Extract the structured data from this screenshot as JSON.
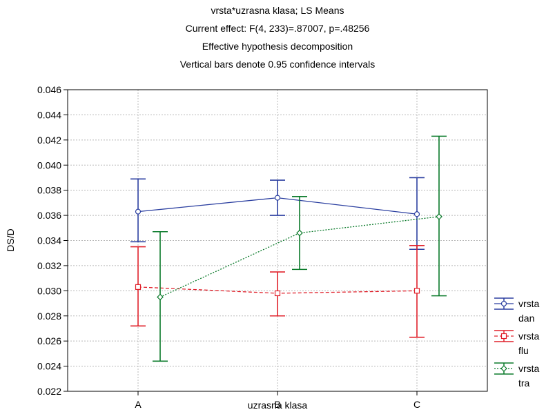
{
  "titles": [
    "vrsta*uzrasna klasa; LS Means",
    "Current effect: F(4, 233)=.87007, p=.48256",
    "Effective hypothesis decomposition",
    "Vertical bars denote 0.95 confidence intervals"
  ],
  "chart_data": {
    "type": "line",
    "title": "vrsta*uzrasna klasa; LS Means",
    "xlabel": "uzrasna klasa",
    "ylabel": "DS/D",
    "categories": [
      "A",
      "B",
      "C"
    ],
    "ylim": [
      0.022,
      0.046
    ],
    "yticks": [
      "0.022",
      "0.024",
      "0.026",
      "0.028",
      "0.030",
      "0.032",
      "0.034",
      "0.036",
      "0.038",
      "0.040",
      "0.042",
      "0.044",
      "0.046"
    ],
    "grid": true,
    "legend_position": "right-bottom",
    "series": [
      {
        "name": "vrsta dan",
        "legend_lines": [
          "vrsta",
          "dan"
        ],
        "color": "#2b3fa0",
        "marker": "circle",
        "dash": "solid",
        "values": [
          0.0363,
          0.0374,
          0.0361
        ],
        "ci_low": [
          0.0339,
          0.036,
          0.0333
        ],
        "ci_high": [
          0.0389,
          0.0388,
          0.039
        ]
      },
      {
        "name": "vrsta flu",
        "legend_lines": [
          "vrsta",
          "flu"
        ],
        "color": "#e0202a",
        "marker": "square",
        "dash": "dashed",
        "values": [
          0.0303,
          0.0298,
          0.03
        ],
        "ci_low": [
          0.0272,
          0.028,
          0.0263
        ],
        "ci_high": [
          0.0335,
          0.0315,
          0.0336
        ]
      },
      {
        "name": "vrsta tra",
        "legend_lines": [
          "vrsta",
          "tra"
        ],
        "color": "#0a7a2a",
        "marker": "diamond",
        "dash": "dotted",
        "values": [
          0.0295,
          0.0346,
          0.0359
        ],
        "ci_low": [
          0.0244,
          0.0317,
          0.0296
        ],
        "ci_high": [
          0.0347,
          0.0375,
          0.0423
        ]
      }
    ]
  }
}
